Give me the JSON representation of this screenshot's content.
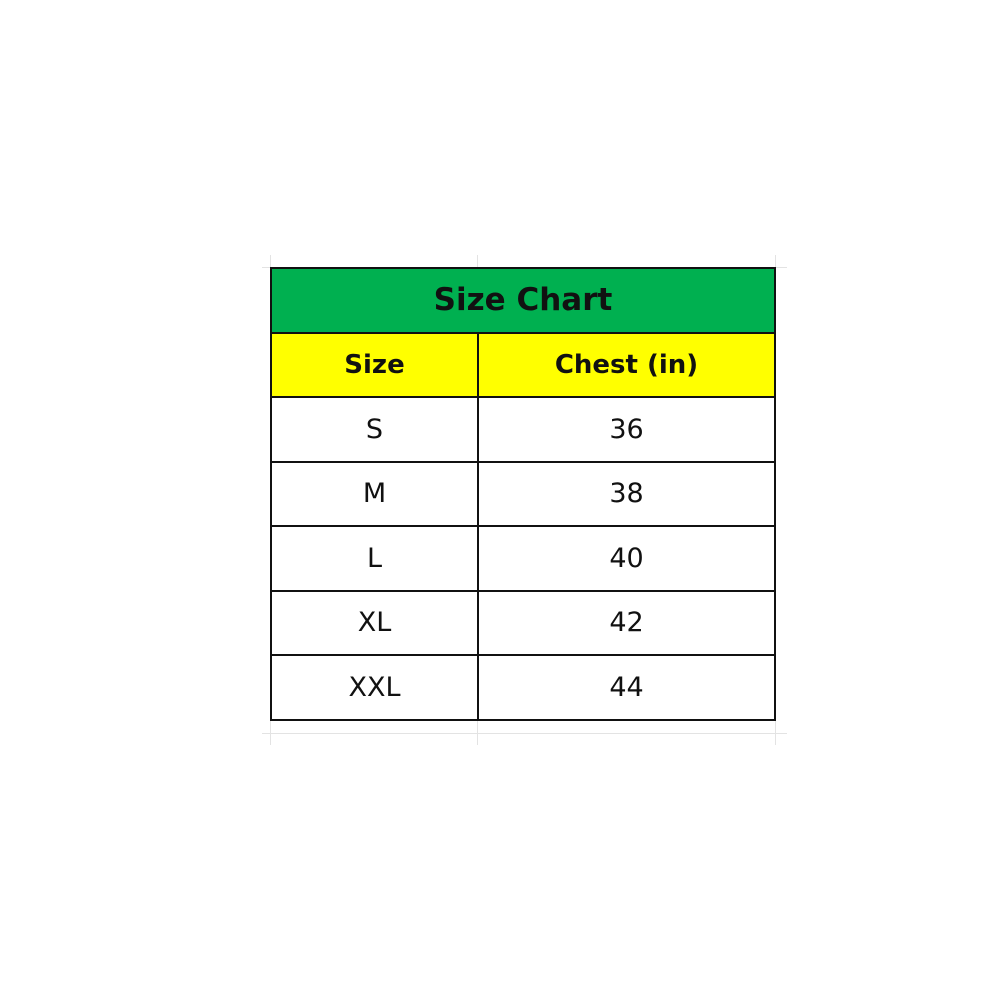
{
  "table": {
    "title": "Size Chart",
    "headers": [
      "Size",
      "Chest (in)"
    ],
    "rows": [
      [
        "S",
        "36"
      ],
      [
        "M",
        "38"
      ],
      [
        "L",
        "40"
      ],
      [
        "XL",
        "42"
      ],
      [
        "XXL",
        "44"
      ]
    ],
    "colors": {
      "title_bg": "#00b050",
      "header_bg": "#ffff00",
      "border": "#111111"
    }
  }
}
